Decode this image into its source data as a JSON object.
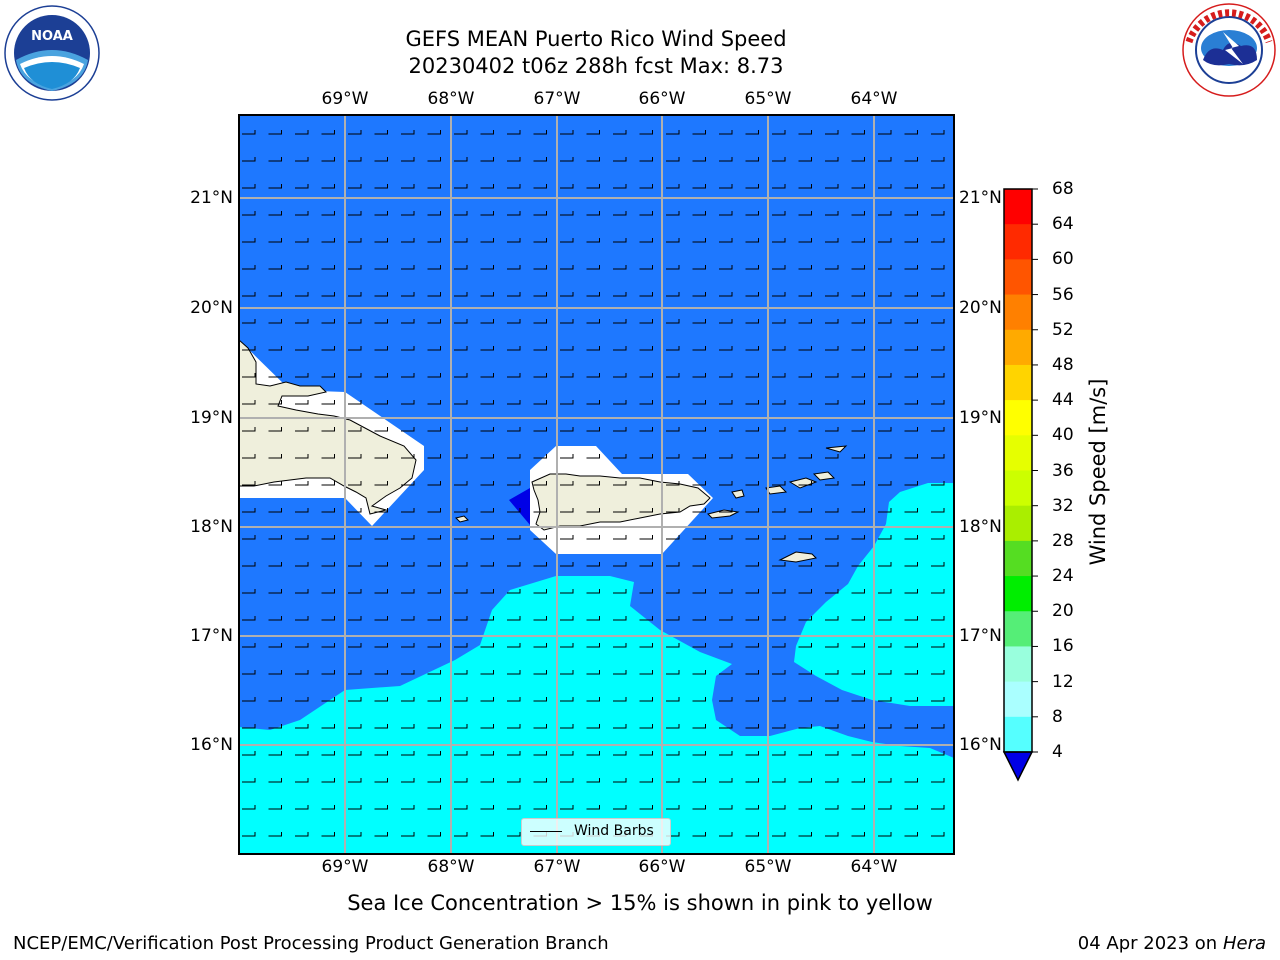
{
  "header": {
    "title_line1": "GEFS MEAN Puerto Rico Wind Speed",
    "title_line2": "20230402 t06z 288h fcst   Max: 8.73"
  },
  "logos": {
    "left": "noaa-logo",
    "right": "nws-logo"
  },
  "map": {
    "lon_labels": [
      "69°W",
      "68°W",
      "67°W",
      "66°W",
      "65°W",
      "64°W"
    ],
    "lat_labels": [
      "21°N",
      "20°N",
      "19°N",
      "18°N",
      "17°N",
      "16°N"
    ],
    "legend_label": "Wind Barbs",
    "colors": {
      "land": "#efefdc",
      "sea_4_8": "#1e78ff",
      "sea_8_12": "#00ffff",
      "sea_low": "#0000e6"
    }
  },
  "colorbar": {
    "label": "Wind Speed [m/s]",
    "ticks": [
      "68",
      "64",
      "60",
      "56",
      "52",
      "48",
      "44",
      "40",
      "36",
      "32",
      "28",
      "24",
      "20",
      "16",
      "12",
      "8",
      "4"
    ],
    "colors": [
      "#ff0000",
      "#ff2a00",
      "#ff5500",
      "#ff8000",
      "#ffaa00",
      "#ffd400",
      "#ffff00",
      "#e6ff00",
      "#ccff00",
      "#aaee00",
      "#55dd22",
      "#00ee00",
      "#55ee77",
      "#99ffdd",
      "#aaffff",
      "#55ffff",
      "#00ffff",
      "#1e78ff"
    ],
    "under_color": "#0000e6"
  },
  "caption": "Sea Ice Concentration > 15% is shown in pink to yellow",
  "footer": {
    "left": "NCEP/EMC/Verification Post Processing Product Generation Branch",
    "right_date": "04 Apr 2023 on ",
    "right_host": "Hera"
  }
}
